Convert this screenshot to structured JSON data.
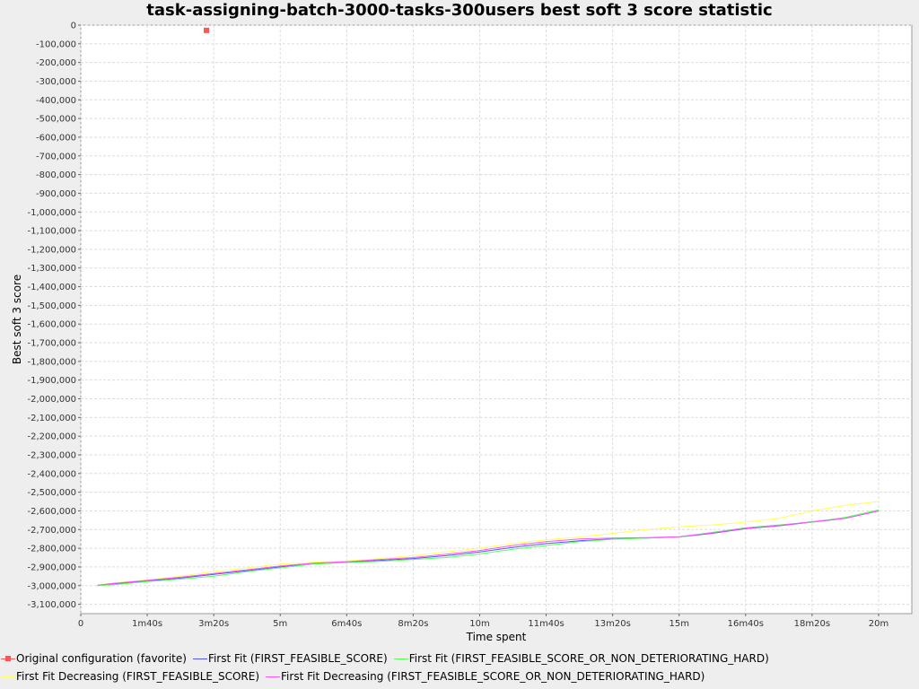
{
  "chart_data": {
    "type": "line",
    "title": "task-assigning-batch-3000-tasks-300users best soft 3 score statistic",
    "xlabel": "Time spent",
    "ylabel": "Best soft 3 score",
    "x_unit": "seconds",
    "xlim": [
      0,
      1250
    ],
    "ylim": [
      -3150000,
      0
    ],
    "x_ticks": [
      0,
      100,
      200,
      300,
      400,
      500,
      600,
      700,
      800,
      900,
      1000,
      1100,
      1200
    ],
    "x_tick_labels": [
      "0",
      "1m40s",
      "3m20s",
      "5m",
      "6m40s",
      "8m20s",
      "10m",
      "11m40s",
      "13m20s",
      "15m",
      "16m40s",
      "18m20s",
      "20m"
    ],
    "y_ticks": [
      0,
      -100000,
      -200000,
      -300000,
      -400000,
      -500000,
      -600000,
      -700000,
      -800000,
      -900000,
      -1000000,
      -1100000,
      -1200000,
      -1300000,
      -1400000,
      -1500000,
      -1600000,
      -1700000,
      -1800000,
      -1900000,
      -2000000,
      -2100000,
      -2200000,
      -2300000,
      -2400000,
      -2500000,
      -2600000,
      -2700000,
      -2800000,
      -2900000,
      -3000000,
      -3100000
    ],
    "y_tick_labels": [
      "0",
      "-100,000",
      "-200,000",
      "-300,000",
      "-400,000",
      "-500,000",
      "-600,000",
      "-700,000",
      "-800,000",
      "-900,000",
      "-1,000,000",
      "-1,100,000",
      "-1,200,000",
      "-1,300,000",
      "-1,400,000",
      "-1,500,000",
      "-1,600,000",
      "-1,700,000",
      "-1,800,000",
      "-1,900,000",
      "-2,000,000",
      "-2,100,000",
      "-2,200,000",
      "-2,300,000",
      "-2,400,000",
      "-2,500,000",
      "-2,600,000",
      "-2,700,000",
      "-2,800,000",
      "-2,900,000",
      "-3,000,000",
      "-3,100,000"
    ],
    "grid": true,
    "legend_position": "bottom",
    "series": [
      {
        "name": "Original configuration (favorite)",
        "color": "#ff5555",
        "marker": "square",
        "x": [
          189
        ],
        "y": [
          -28000
        ]
      },
      {
        "name": "First Fit (FIRST_FEASIBLE_SCORE)",
        "color": "#5555ff",
        "x": [
          25,
          50,
          100,
          150,
          200,
          250,
          300,
          350,
          400,
          450,
          500,
          550,
          600,
          650,
          700,
          750,
          800,
          850,
          900,
          950,
          1000,
          1050,
          1100,
          1150,
          1200
        ],
        "y": [
          -3000000,
          -2990000,
          -2975000,
          -2960000,
          -2940000,
          -2920000,
          -2900000,
          -2880000,
          -2875000,
          -2865000,
          -2855000,
          -2840000,
          -2820000,
          -2795000,
          -2775000,
          -2760000,
          -2750000,
          -2745000,
          -2740000,
          -2720000,
          -2695000,
          -2680000,
          -2660000,
          -2640000,
          -2600000
        ]
      },
      {
        "name": "First Fit (FIRST_FEASIBLE_SCORE_OR_NON_DETERIORATING_HARD)",
        "color": "#55ff55",
        "x": [
          25,
          50,
          100,
          150,
          200,
          250,
          300,
          350,
          400,
          450,
          500,
          550,
          600,
          650,
          700,
          750,
          800,
          850,
          900,
          950,
          1000,
          1050,
          1100,
          1150,
          1200
        ],
        "y": [
          -3000000,
          -2995000,
          -2978000,
          -2965000,
          -2950000,
          -2925000,
          -2905000,
          -2885000,
          -2877000,
          -2870000,
          -2860000,
          -2850000,
          -2830000,
          -2805000,
          -2785000,
          -2765000,
          -2752000,
          -2745000,
          -2740000,
          -2715000,
          -2690000,
          -2675000,
          -2660000,
          -2635000,
          -2595000
        ]
      },
      {
        "name": "First Fit Decreasing (FIRST_FEASIBLE_SCORE)",
        "color": "#ffff55",
        "x": [
          25,
          50,
          100,
          150,
          200,
          250,
          300,
          350,
          400,
          450,
          500,
          550,
          600,
          650,
          700,
          750,
          800,
          850,
          900,
          950,
          1000,
          1050,
          1100,
          1150,
          1200
        ],
        "y": [
          -2998000,
          -2985000,
          -2970000,
          -2950000,
          -2925000,
          -2905000,
          -2885000,
          -2875000,
          -2868000,
          -2855000,
          -2840000,
          -2820000,
          -2800000,
          -2775000,
          -2755000,
          -2740000,
          -2720000,
          -2700000,
          -2685000,
          -2675000,
          -2660000,
          -2640000,
          -2600000,
          -2570000,
          -2550000
        ]
      },
      {
        "name": "First Fit Decreasing (FIRST_FEASIBLE_SCORE_OR_NON_DETERIORATING_HARD)",
        "color": "#ff55ff",
        "x": [
          25,
          50,
          100,
          150,
          200,
          250,
          300,
          350,
          400,
          450,
          500,
          550,
          600,
          650,
          700,
          750,
          800,
          850,
          900,
          950,
          1000,
          1050,
          1100,
          1150,
          1200
        ],
        "y": [
          -2998000,
          -2988000,
          -2972000,
          -2955000,
          -2935000,
          -2915000,
          -2895000,
          -2880000,
          -2872000,
          -2860000,
          -2850000,
          -2832000,
          -2812000,
          -2785000,
          -2765000,
          -2750000,
          -2745000,
          -2743000,
          -2738000,
          -2718000,
          -2693000,
          -2678000,
          -2658000,
          -2640000,
          -2600000
        ]
      }
    ]
  }
}
